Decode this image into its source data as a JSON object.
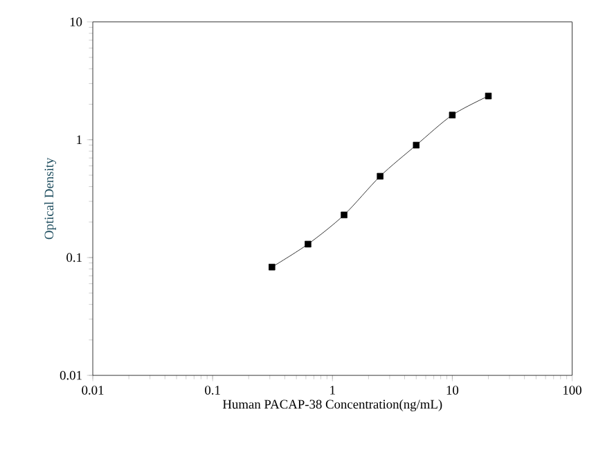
{
  "chart_data": {
    "type": "line",
    "xlabel": "Human PACAP-38 Concentration(ng/mL)",
    "ylabel": "Optical Density",
    "x": [
      0.3125,
      0.625,
      1.25,
      2.5,
      5,
      10,
      20
    ],
    "series": [
      {
        "color": "#000000",
        "values": [
          0.083,
          0.13,
          0.23,
          0.49,
          0.9,
          1.62,
          2.35
        ]
      }
    ],
    "log": "xy",
    "xlim": [
      0.01,
      100
    ],
    "ylim": [
      0.01,
      10
    ],
    "xticks": [
      0.01,
      0.1,
      1,
      10,
      100
    ],
    "yticks": [
      0.01,
      0.1,
      1,
      10
    ],
    "marker": "square",
    "line_style": "solid",
    "grid": false
  }
}
